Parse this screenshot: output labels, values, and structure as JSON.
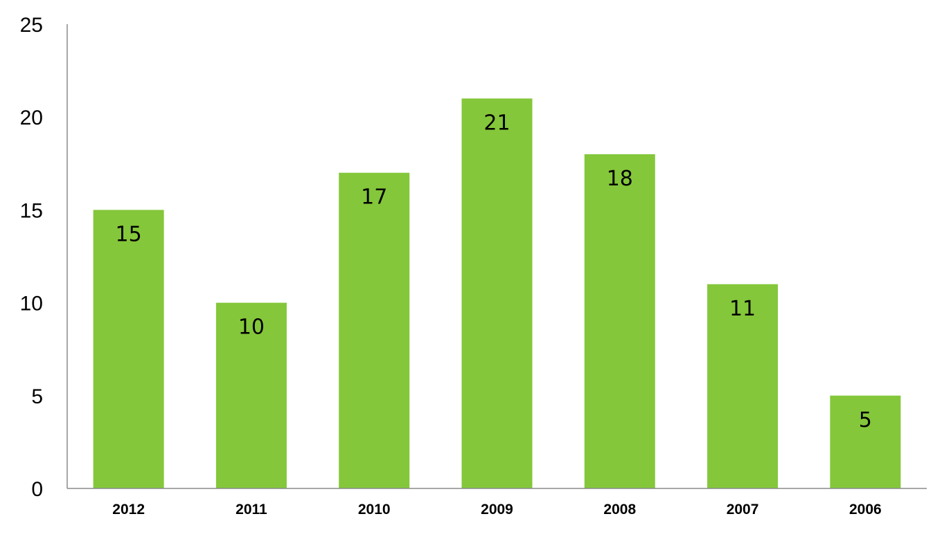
{
  "chart_data": {
    "type": "bar",
    "title": "",
    "xlabel": "",
    "ylabel": "",
    "categories": [
      "2012",
      "2011",
      "2010",
      "2009",
      "2008",
      "2007",
      "2006"
    ],
    "values": [
      15,
      10,
      17,
      21,
      18,
      11,
      5
    ],
    "ylim": [
      0,
      25
    ],
    "yticks": [
      0,
      5,
      10,
      15,
      20,
      25
    ],
    "grid": false,
    "legend": "none",
    "bar_color": "#84c73a",
    "data_labels": "inside-top"
  }
}
